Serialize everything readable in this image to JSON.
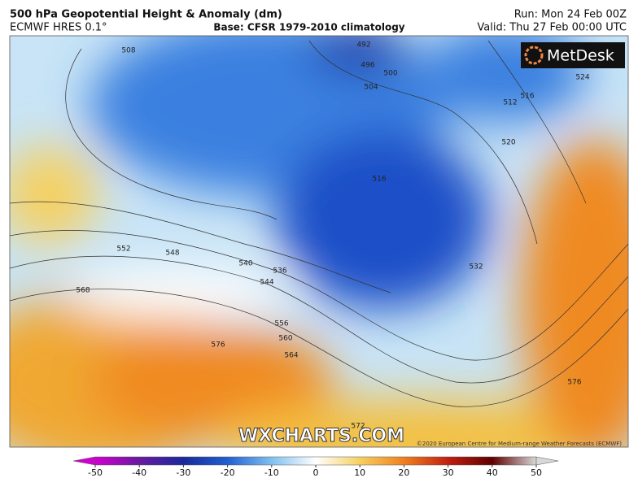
{
  "header": {
    "title": "500 hPa Geopotential Height & Anomaly (dm)",
    "model": "ECMWF HRES 0.1°",
    "base": "Base: CFSR 1979-2010 climatology",
    "run": "Run: Mon 24 Feb 00Z",
    "valid": "Valid: Thu 27 Feb 00:00 UTC"
  },
  "logo": "MetDesk",
  "watermark": "WXCHARTS.COM",
  "copyright": "©2020 European Centre for Medium-range Weather Forecasts (ECMWF)",
  "contour_labels": [
    508,
    492,
    496,
    500,
    504,
    512,
    516,
    520,
    524,
    516,
    552,
    548,
    540,
    536,
    544,
    556,
    560,
    564,
    568,
    576,
    576,
    572,
    532
  ],
  "colorbar": {
    "range": [
      -50,
      50
    ],
    "ticks": [
      -50,
      -40,
      -30,
      -20,
      -10,
      0,
      10,
      20,
      30,
      40,
      50
    ]
  }
}
